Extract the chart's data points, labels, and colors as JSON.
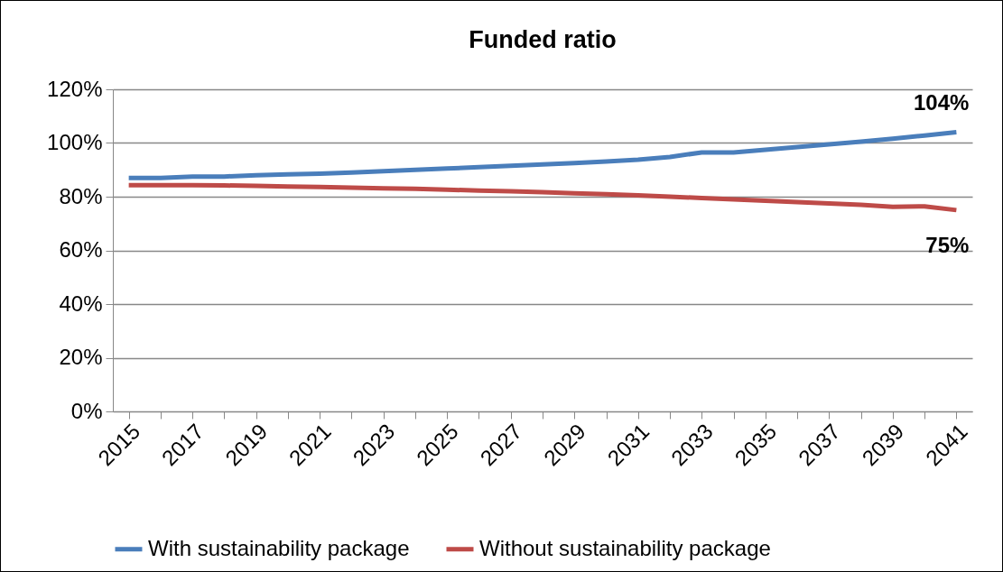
{
  "chart_data": {
    "type": "line",
    "title": "Funded ratio",
    "categories": [
      "2015",
      null,
      "2017",
      null,
      "2019",
      null,
      "2021",
      null,
      "2023",
      null,
      "2025",
      null,
      "2027",
      null,
      "2029",
      null,
      "2031",
      null,
      "2033",
      null,
      "2035",
      null,
      "2037",
      null,
      "2039",
      null,
      "2041"
    ],
    "series": [
      {
        "name": "With sustainability package",
        "color": "#4a7ebb",
        "values": [
          87,
          87,
          87.5,
          87.5,
          88,
          88.3,
          88.6,
          89,
          89.5,
          90,
          90.5,
          91,
          91.5,
          92,
          92.5,
          93.1,
          93.8,
          94.8,
          96.5,
          96.5,
          97.5,
          98.5,
          99.5,
          100.5,
          101.6,
          102.8,
          104
        ],
        "value_labels": [
          null,
          null,
          null,
          null,
          null,
          null,
          null,
          null,
          null,
          null,
          null,
          null,
          null,
          null,
          null,
          null,
          null,
          null,
          null,
          null,
          null,
          null,
          null,
          null,
          null,
          null,
          "104%"
        ]
      },
      {
        "name": "Without sustainability package",
        "color": "#be4b48",
        "values": [
          84.3,
          84.3,
          84.3,
          84.2,
          84,
          83.8,
          83.6,
          83.4,
          83.1,
          82.9,
          82.6,
          82.3,
          82,
          81.7,
          81.3,
          80.9,
          80.5,
          80,
          79.5,
          79,
          78.5,
          78,
          77.5,
          77,
          76.2,
          76.4,
          75
        ],
        "value_labels": [
          null,
          null,
          null,
          null,
          null,
          null,
          null,
          null,
          null,
          null,
          null,
          null,
          null,
          null,
          null,
          null,
          null,
          null,
          null,
          null,
          null,
          null,
          null,
          null,
          null,
          null,
          "75%"
        ]
      }
    ],
    "ylim": [
      0,
      120
    ],
    "yticks": [
      {
        "value": 0,
        "label": "0%"
      },
      {
        "value": 20,
        "label": "20%"
      },
      {
        "value": 40,
        "label": "40%"
      },
      {
        "value": 60,
        "label": "60%"
      },
      {
        "value": 80,
        "label": "80%"
      },
      {
        "value": 100,
        "label": "100%"
      },
      {
        "value": 120,
        "label": "120%"
      }
    ],
    "grid": "y",
    "legend": "bottom",
    "marker": "none",
    "line_style": "solid"
  }
}
